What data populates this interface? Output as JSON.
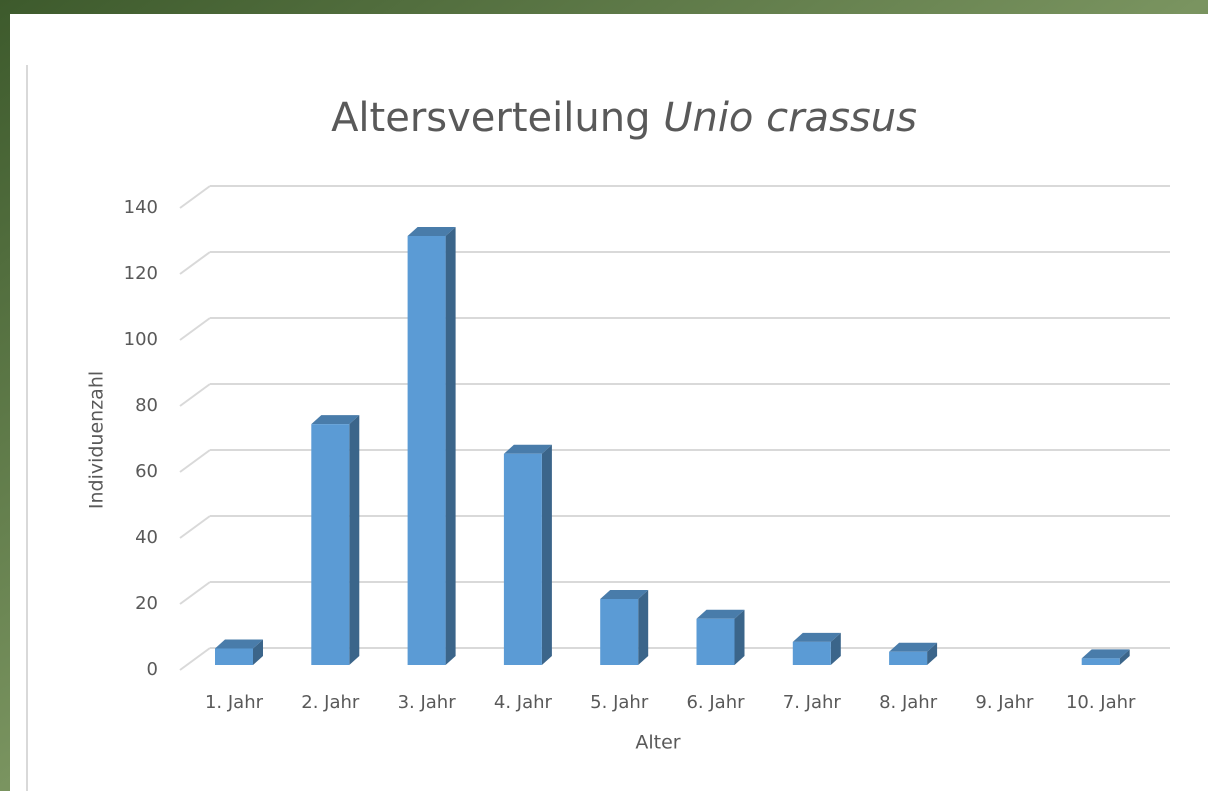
{
  "chart_data": {
    "type": "bar",
    "title": {
      "text": "Altersverteilung",
      "species": "Unio crassus"
    },
    "x_label": "Alter",
    "y_label": "Individuenzahl",
    "categories": [
      "1. Jahr",
      "2. Jahr",
      "3. Jahr",
      "4. Jahr",
      "5. Jahr",
      "6. Jahr",
      "7. Jahr",
      "8. Jahr",
      "9. Jahr",
      "10. Jahr"
    ],
    "values": [
      5,
      73,
      130,
      64,
      20,
      14,
      7,
      4,
      0,
      2
    ],
    "color": "#5b9bd5",
    "ylim": [
      0,
      140
    ],
    "yticks": [
      0,
      20,
      40,
      60,
      80,
      100,
      120,
      140
    ],
    "grid": true
  }
}
